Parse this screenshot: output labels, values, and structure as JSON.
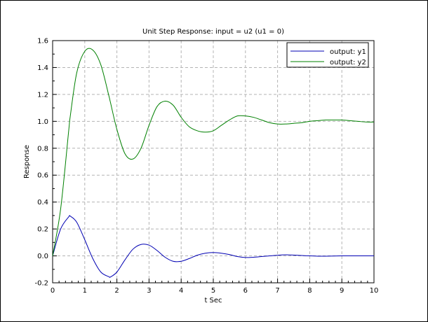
{
  "chart_data": {
    "type": "line",
    "title": "Unit Step Response: input = u2 (u1 = 0)",
    "xlabel": "t Sec",
    "ylabel": "Response",
    "xlim": [
      0,
      10
    ],
    "ylim": [
      -0.2,
      1.6
    ],
    "xticks": [
      "0",
      "1",
      "2",
      "3",
      "4",
      "5",
      "6",
      "7",
      "8",
      "9",
      "10"
    ],
    "yticks": [
      "-0.2",
      "0.0",
      "0.2",
      "0.4",
      "0.6",
      "0.8",
      "1.0",
      "1.2",
      "1.4",
      "1.6"
    ],
    "grid": true,
    "legend_position": "top-right",
    "colors": {
      "y1": "#0000b3",
      "y2": "#008000",
      "grid": "#b4b4b4"
    },
    "x": [
      0,
      0.25,
      0.5,
      0.55,
      0.75,
      1.0,
      1.25,
      1.5,
      1.75,
      1.8,
      2.0,
      2.25,
      2.5,
      2.75,
      3.0,
      3.25,
      3.5,
      3.75,
      4.0,
      4.25,
      4.5,
      4.75,
      5.0,
      5.25,
      5.5,
      5.75,
      6.0,
      6.25,
      6.5,
      6.75,
      7.0,
      7.25,
      7.5,
      7.75,
      8.0,
      8.25,
      8.5,
      8.75,
      9.0,
      9.25,
      9.5,
      9.75,
      10.0
    ],
    "series": [
      {
        "name": "output: y1",
        "values": [
          0,
          0.2,
          0.29,
          0.295,
          0.25,
          0.12,
          -0.02,
          -0.12,
          -0.155,
          -0.157,
          -0.12,
          -0.03,
          0.05,
          0.085,
          0.08,
          0.04,
          -0.01,
          -0.04,
          -0.04,
          -0.02,
          0.005,
          0.02,
          0.025,
          0.02,
          0.01,
          -0.005,
          -0.012,
          -0.01,
          -0.005,
          0,
          0.005,
          0.008,
          0.006,
          0.003,
          0,
          -0.002,
          -0.002,
          -0.001,
          0,
          0,
          0,
          0,
          0
        ]
      },
      {
        "name": "output: y2",
        "values": [
          0,
          0.35,
          0.93,
          1.04,
          1.36,
          1.52,
          1.53,
          1.42,
          1.19,
          1.14,
          0.94,
          0.76,
          0.72,
          0.8,
          0.97,
          1.11,
          1.15,
          1.12,
          1.03,
          0.96,
          0.93,
          0.92,
          0.93,
          0.97,
          1.01,
          1.04,
          1.04,
          1.03,
          1.01,
          0.99,
          0.98,
          0.98,
          0.985,
          0.99,
          1.0,
          1.005,
          1.01,
          1.01,
          1.01,
          1.005,
          1.0,
          0.995,
          0.995
        ]
      }
    ]
  }
}
